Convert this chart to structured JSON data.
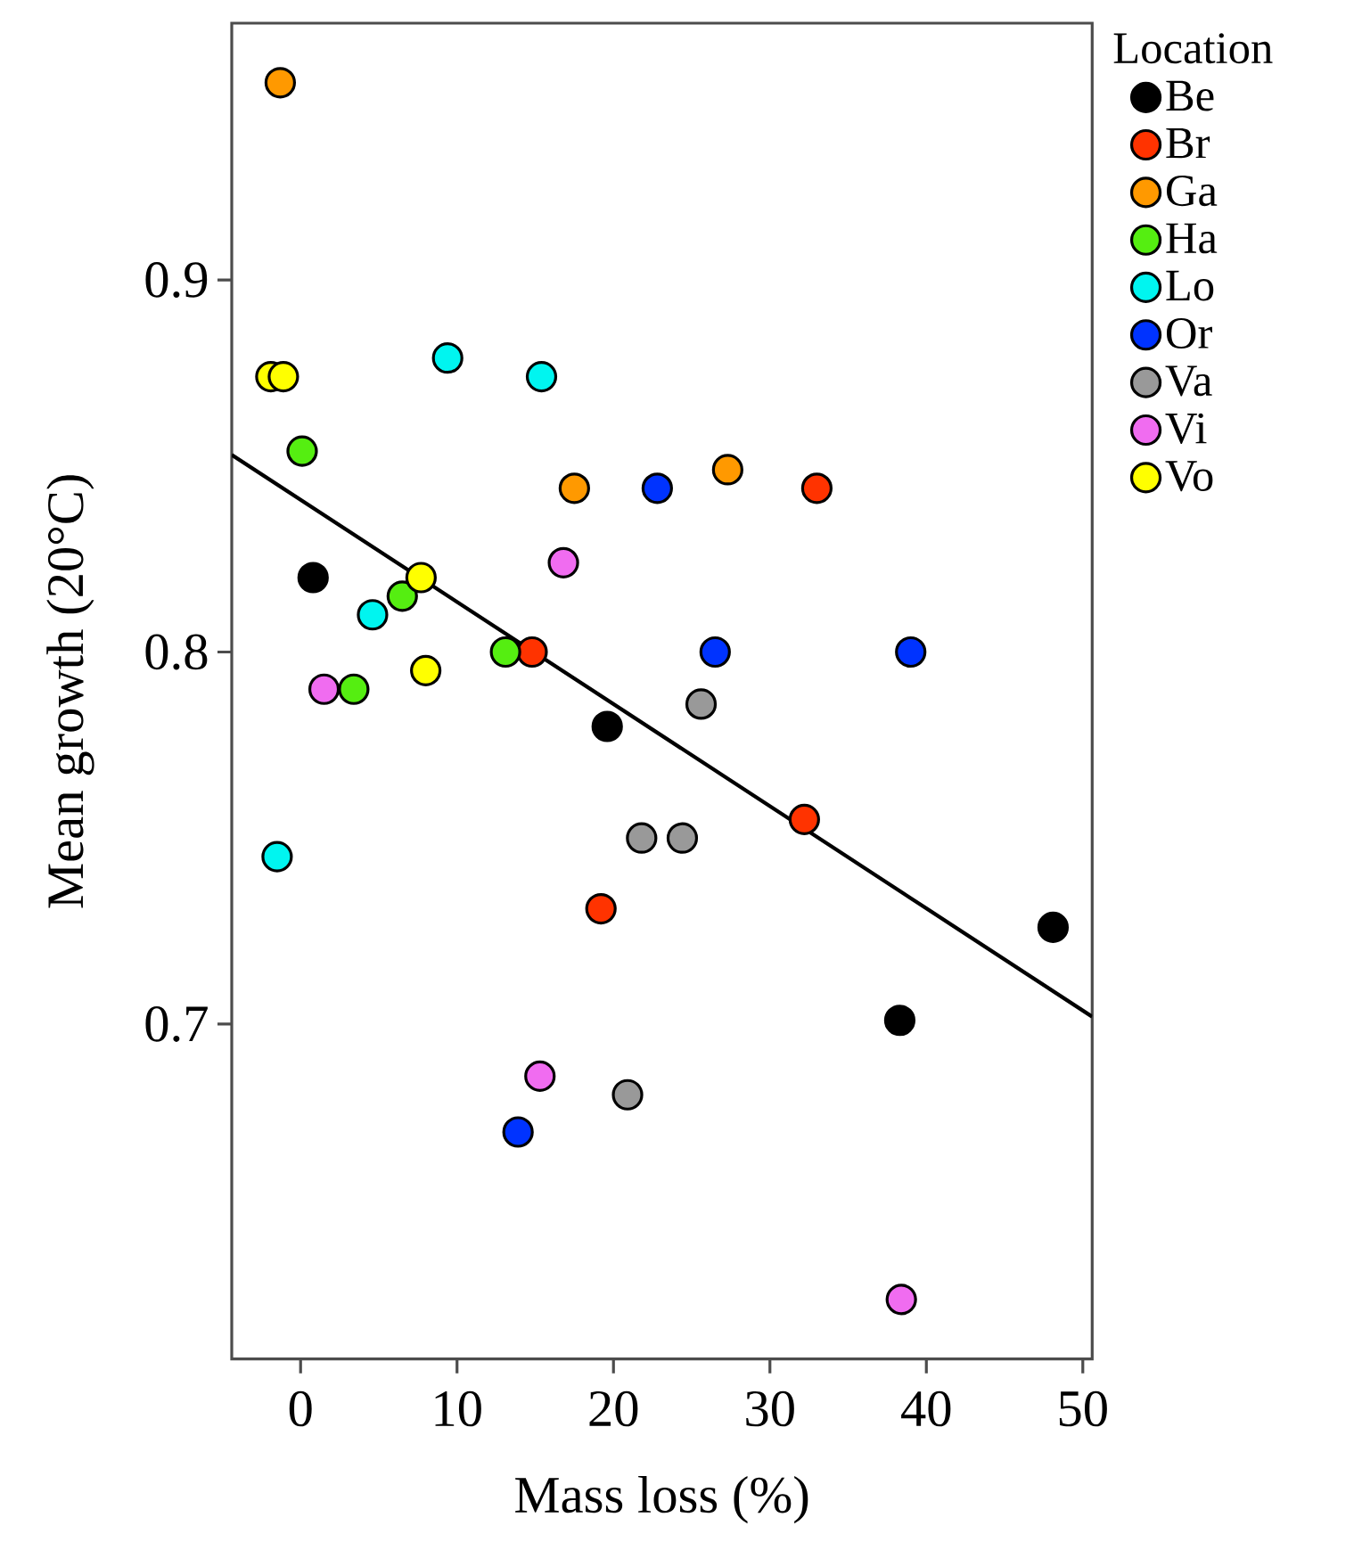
{
  "chart_data": {
    "type": "scatter",
    "xlabel": "Mass loss (%)",
    "ylabel": "Mean growth (20°C)",
    "legend_title": "Location",
    "legend": "right",
    "marker": "circle",
    "grid": false,
    "xlim": [
      -4.4,
      50.6
    ],
    "ylim": [
      0.61,
      0.969
    ],
    "xticks": [
      0,
      10,
      20,
      30,
      40,
      50
    ],
    "yticks": [
      0.7,
      0.8,
      0.9
    ],
    "series": [
      {
        "name": "Be",
        "color": "#000000",
        "x": [
          0.8,
          19.6,
          38.3,
          48.1
        ],
        "values": [
          0.82,
          0.78,
          0.701,
          0.726
        ]
      },
      {
        "name": "Br",
        "color": "#ff3300",
        "x": [
          14.8,
          19.2,
          32.2,
          33.0
        ],
        "values": [
          0.8,
          0.731,
          0.755,
          0.844
        ]
      },
      {
        "name": "Ga",
        "color": "#ff9900",
        "x": [
          -1.3,
          17.5,
          27.3
        ],
        "values": [
          0.953,
          0.844,
          0.849
        ]
      },
      {
        "name": "Ha",
        "color": "#55ee11",
        "x": [
          0.1,
          6.5,
          13.1,
          3.4
        ],
        "values": [
          0.854,
          0.815,
          0.8,
          0.79
        ]
      },
      {
        "name": "Lo",
        "color": "#00f5f0",
        "x": [
          9.4,
          15.4,
          4.6,
          -1.5
        ],
        "values": [
          0.879,
          0.874,
          0.81,
          0.745
        ]
      },
      {
        "name": "Or",
        "color": "#0033ff",
        "x": [
          22.8,
          26.5,
          39.0,
          13.9
        ],
        "values": [
          0.844,
          0.8,
          0.8,
          0.671
        ]
      },
      {
        "name": "Va",
        "color": "#999999",
        "x": [
          25.6,
          21.8,
          24.4,
          20.9
        ],
        "values": [
          0.786,
          0.75,
          0.75,
          0.681
        ]
      },
      {
        "name": "Vi",
        "color": "#f06cf0",
        "x": [
          16.8,
          1.5,
          15.3,
          38.4
        ],
        "values": [
          0.824,
          0.79,
          0.686,
          0.626
        ]
      },
      {
        "name": "Vo",
        "color": "#ffff00",
        "x": [
          -1.9,
          -1.1,
          7.7,
          8.0
        ],
        "values": [
          0.874,
          0.874,
          0.82,
          0.795
        ]
      },
      {
        "type": "line",
        "color": "#000000",
        "marker": "none",
        "line_style": "solid",
        "x": [
          -4.4,
          50.6
        ],
        "values": [
          0.853,
          0.702
        ]
      }
    ]
  }
}
